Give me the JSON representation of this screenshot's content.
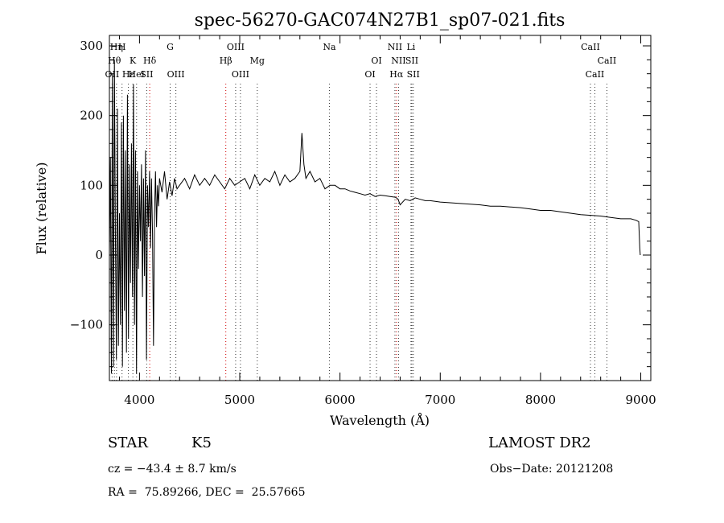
{
  "chart_data": {
    "type": "line",
    "title": "spec-56270-GAC074N27B1_sp07-021.fits",
    "xlabel": "Wavelength (Å)",
    "ylabel": "Flux (relative)",
    "xlim": [
      3700,
      9100
    ],
    "ylim": [
      -180,
      315
    ],
    "xticks": [
      4000,
      5000,
      6000,
      7000,
      8000,
      9000
    ],
    "xtick_labels": [
      "4000",
      "5000",
      "6000",
      "7000",
      "8000",
      "9000"
    ],
    "yticks": [
      -100,
      0,
      100,
      200,
      300
    ],
    "ytick_labels": [
      "−100",
      "0",
      "100",
      "200",
      "300"
    ],
    "grid": false,
    "series": [
      {
        "color": "#000000",
        "x": [
          3700,
          3710,
          3720,
          3730,
          3740,
          3750,
          3760,
          3770,
          3780,
          3790,
          3800,
          3810,
          3820,
          3830,
          3840,
          3850,
          3860,
          3870,
          3880,
          3890,
          3900,
          3910,
          3920,
          3930,
          3940,
          3950,
          3960,
          3970,
          3980,
          3990,
          4000,
          4010,
          4020,
          4030,
          4040,
          4050,
          4060,
          4070,
          4080,
          4090,
          4100,
          4110,
          4120,
          4130,
          4140,
          4150,
          4160,
          4170,
          4180,
          4190,
          4200,
          4225,
          4250,
          4275,
          4300,
          4325,
          4350,
          4375,
          4400,
          4450,
          4500,
          4550,
          4600,
          4650,
          4700,
          4750,
          4800,
          4850,
          4900,
          4950,
          5000,
          5050,
          5100,
          5150,
          5200,
          5250,
          5300,
          5350,
          5400,
          5450,
          5500,
          5550,
          5600,
          5620,
          5640,
          5660,
          5700,
          5750,
          5800,
          5850,
          5900,
          5950,
          6000,
          6050,
          6100,
          6150,
          6200,
          6250,
          6300,
          6350,
          6400,
          6450,
          6500,
          6550,
          6563,
          6580,
          6600,
          6650,
          6700,
          6750,
          6800,
          6850,
          6900,
          6950,
          7000,
          7100,
          7200,
          7300,
          7400,
          7500,
          7600,
          7700,
          7800,
          7900,
          8000,
          8100,
          8200,
          8300,
          8400,
          8500,
          8600,
          8700,
          8800,
          8900,
          8950,
          8980,
          8990,
          8995
        ],
        "y": [
          0,
          140,
          -170,
          260,
          -160,
          280,
          20,
          -150,
          210,
          -130,
          60,
          -100,
          190,
          -160,
          200,
          -80,
          150,
          -140,
          230,
          -120,
          130,
          -40,
          160,
          -60,
          245,
          -100,
          150,
          -170,
          120,
          -20,
          100,
          20,
          130,
          -60,
          110,
          -30,
          150,
          -150,
          100,
          40,
          120,
          10,
          110,
          30,
          -130,
          60,
          120,
          40,
          100,
          70,
          110,
          90,
          120,
          80,
          105,
          85,
          110,
          95,
          100,
          110,
          95,
          115,
          100,
          110,
          100,
          115,
          105,
          95,
          110,
          100,
          105,
          110,
          95,
          115,
          100,
          110,
          105,
          120,
          100,
          115,
          105,
          110,
          120,
          175,
          130,
          110,
          120,
          105,
          110,
          95,
          100,
          100,
          95,
          95,
          92,
          90,
          88,
          86,
          88,
          84,
          86,
          85,
          84,
          83,
          82,
          80,
          72,
          80,
          78,
          82,
          80,
          78,
          78,
          77,
          76,
          75,
          74,
          73,
          72,
          70,
          70,
          69,
          68,
          66,
          64,
          64,
          62,
          60,
          58,
          57,
          56,
          54,
          52,
          52,
          50,
          48,
          10,
          0
        ]
      }
    ],
    "lines": [
      {
        "label": "OII",
        "x": 3727,
        "row": 3,
        "color": "#333333"
      },
      {
        "label": "Hθ",
        "x": 3750,
        "row": 2,
        "color": "#333333"
      },
      {
        "label": "Hη",
        "x": 3771,
        "row": 1,
        "color": "#333333"
      },
      {
        "label": "Hε",
        "x": 3889,
        "row": 3,
        "color": "#333333"
      },
      {
        "label": "H",
        "x": 3826,
        "row": 1,
        "color": "#333333"
      },
      {
        "label": "K",
        "x": 3934,
        "row": 2,
        "color": "#333333"
      },
      {
        "label": "HeI",
        "x": 3971,
        "row": 3,
        "color": "#333333"
      },
      {
        "label": "SII",
        "x": 4072,
        "row": 3,
        "color": "#333333"
      },
      {
        "label": "Hδ",
        "x": 4102,
        "row": 2,
        "color": "#d00000"
      },
      {
        "label": "G",
        "x": 4306,
        "row": 1,
        "color": "#333333"
      },
      {
        "label": "OIII",
        "x": 4363,
        "row": 3,
        "color": "#333333"
      },
      {
        "label": "OIII",
        "x": 4959,
        "row": 1,
        "color": "#333333"
      },
      {
        "label": "Hβ",
        "x": 4861,
        "row": 2,
        "color": "#d00000"
      },
      {
        "label": "OIII",
        "x": 5007,
        "row": 3,
        "color": "#333333"
      },
      {
        "label": "Mg",
        "x": 5175,
        "row": 2,
        "color": "#333333"
      },
      {
        "label": "Na",
        "x": 5894,
        "row": 1,
        "color": "#333333"
      },
      {
        "label": "OI",
        "x": 6364,
        "row": 2,
        "color": "#333333"
      },
      {
        "label": "OI",
        "x": 6300,
        "row": 3,
        "color": "#333333"
      },
      {
        "label": "NII",
        "x": 6548,
        "row": 1,
        "color": "#333333"
      },
      {
        "label": "NII",
        "x": 6584,
        "row": 2,
        "color": "#333333"
      },
      {
        "label": "Hα",
        "x": 6563,
        "row": 3,
        "color": "#d00000"
      },
      {
        "label": "Li",
        "x": 6708,
        "row": 1,
        "color": "#333333"
      },
      {
        "label": "SII",
        "x": 6717,
        "row": 2,
        "color": "#333333"
      },
      {
        "label": "SII",
        "x": 6731,
        "row": 3,
        "color": "#333333"
      },
      {
        "label": "CaII",
        "x": 8498,
        "row": 1,
        "color": "#333333"
      },
      {
        "label": "CaII",
        "x": 8662,
        "row": 2,
        "color": "#333333"
      },
      {
        "label": "CaII",
        "x": 8542,
        "row": 3,
        "color": "#333333"
      }
    ]
  },
  "info": {
    "classification": "STAR",
    "subclass": "K5",
    "survey": "LAMOST DR2",
    "cz": "cz = −43.4 ± 8.7 km/s",
    "obs_date": "Obs−Date: 20121208",
    "coords": "RA =  75.89266, DEC =  25.57665"
  }
}
